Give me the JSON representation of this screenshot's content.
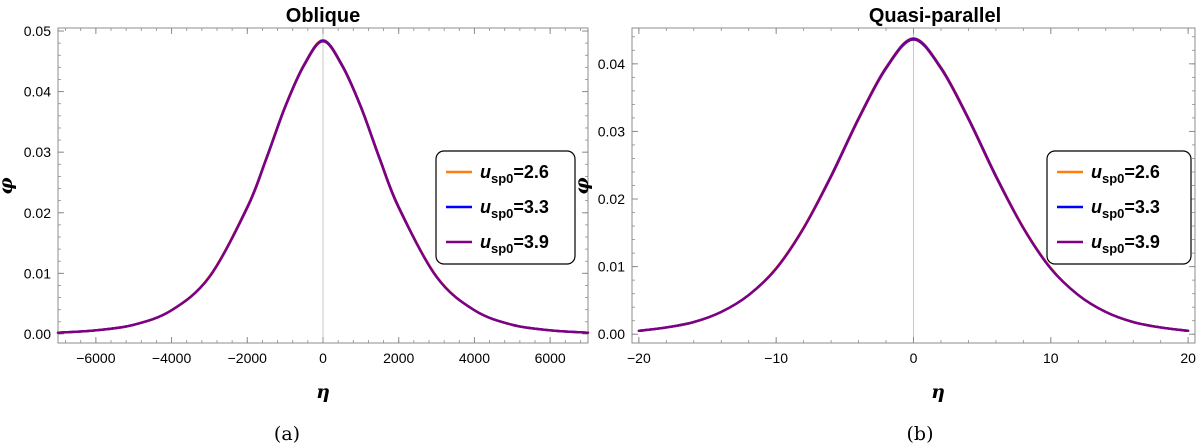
{
  "chart_data": [
    {
      "type": "line",
      "title": "Oblique",
      "xlabel": "η",
      "ylabel": "φ",
      "caption": "(a)",
      "xlim": [
        -7000,
        7000
      ],
      "ylim": [
        -0.0015,
        0.0505
      ],
      "x_ticks": [
        -6000,
        -4000,
        -2000,
        0,
        2000,
        4000,
        6000
      ],
      "x_tick_labels": [
        "−6000",
        "−4000",
        "−2000",
        "0",
        "2000",
        "4000",
        "6000"
      ],
      "y_ticks": [
        0.0,
        0.01,
        0.02,
        0.03,
        0.04,
        0.05
      ],
      "y_tick_labels": [
        "0.00",
        "0.01",
        "0.02",
        "0.03",
        "0.04",
        "0.05"
      ],
      "legend_position": "right",
      "x": [
        -7000,
        -6000,
        -5000,
        -4000,
        -3000,
        -2000,
        -1500,
        -1000,
        -500,
        0,
        500,
        1000,
        1500,
        2000,
        3000,
        4000,
        5000,
        6000,
        7000
      ],
      "series": [
        {
          "name_main": "u",
          "name_sub": "sp0",
          "name_value": "=2.6",
          "color": "#ff7f0e",
          "values": [
            0.0002,
            0.0006,
            0.0015,
            0.0039,
            0.0095,
            0.021,
            0.029,
            0.0376,
            0.0445,
            0.0485,
            0.0445,
            0.0376,
            0.029,
            0.021,
            0.0095,
            0.0039,
            0.0015,
            0.0006,
            0.0002
          ]
        },
        {
          "name_main": "u",
          "name_sub": "sp0",
          "name_value": "=3.3",
          "color": "#0000ff",
          "values": [
            0.0002,
            0.0006,
            0.0015,
            0.0039,
            0.0094,
            0.0209,
            0.0289,
            0.0375,
            0.0444,
            0.0484,
            0.0444,
            0.0375,
            0.0289,
            0.0209,
            0.0094,
            0.0039,
            0.0015,
            0.0006,
            0.0002
          ]
        },
        {
          "name_main": "u",
          "name_sub": "sp0",
          "name_value": "=3.9",
          "color": "#800080",
          "values": [
            0.0002,
            0.0006,
            0.0015,
            0.0039,
            0.0094,
            0.0208,
            0.0288,
            0.0374,
            0.0443,
            0.0483,
            0.0443,
            0.0374,
            0.0288,
            0.0208,
            0.0094,
            0.0039,
            0.0015,
            0.0006,
            0.0002
          ]
        }
      ]
    },
    {
      "type": "line",
      "title": "Quasi-parallel",
      "xlabel": "η",
      "ylabel": "φ",
      "caption": "(b)",
      "xlim": [
        -20.5,
        20.5
      ],
      "ylim": [
        -0.0013,
        0.0453
      ],
      "x_ticks": [
        -20,
        -10,
        0,
        10,
        20
      ],
      "x_tick_labels": [
        "−20",
        "−10",
        "0",
        "10",
        "20"
      ],
      "y_ticks": [
        0.0,
        0.01,
        0.02,
        0.03,
        0.04
      ],
      "y_tick_labels": [
        "0.00",
        "0.01",
        "0.02",
        "0.03",
        "0.04"
      ],
      "legend_position": "right",
      "x": [
        -20,
        -18,
        -16,
        -14,
        -12,
        -10,
        -8,
        -6,
        -4,
        -2,
        0,
        2,
        4,
        6,
        8,
        10,
        12,
        14,
        16,
        18,
        20
      ],
      "series": [
        {
          "name_main": "u",
          "name_sub": "sp0",
          "name_value": "=2.6",
          "color": "#ff7f0e",
          "values": [
            0.0005,
            0.001,
            0.0018,
            0.0033,
            0.0058,
            0.0098,
            0.0158,
            0.0235,
            0.032,
            0.0395,
            0.0438,
            0.0395,
            0.032,
            0.0235,
            0.0158,
            0.0098,
            0.0058,
            0.0033,
            0.0018,
            0.001,
            0.0005
          ]
        },
        {
          "name_main": "u",
          "name_sub": "sp0",
          "name_value": "=3.3",
          "color": "#0000ff",
          "values": [
            0.0005,
            0.001,
            0.0018,
            0.0033,
            0.0058,
            0.0097,
            0.0157,
            0.0234,
            0.0319,
            0.0394,
            0.0437,
            0.0394,
            0.0319,
            0.0234,
            0.0157,
            0.0097,
            0.0058,
            0.0033,
            0.0018,
            0.001,
            0.0005
          ]
        },
        {
          "name_main": "u",
          "name_sub": "sp0",
          "name_value": "=3.9",
          "color": "#800080",
          "values": [
            0.0005,
            0.001,
            0.0018,
            0.0033,
            0.0058,
            0.0097,
            0.0157,
            0.0233,
            0.0318,
            0.0393,
            0.0436,
            0.0393,
            0.0318,
            0.0233,
            0.0157,
            0.0097,
            0.0058,
            0.0033,
            0.0018,
            0.001,
            0.0005
          ]
        }
      ]
    }
  ]
}
